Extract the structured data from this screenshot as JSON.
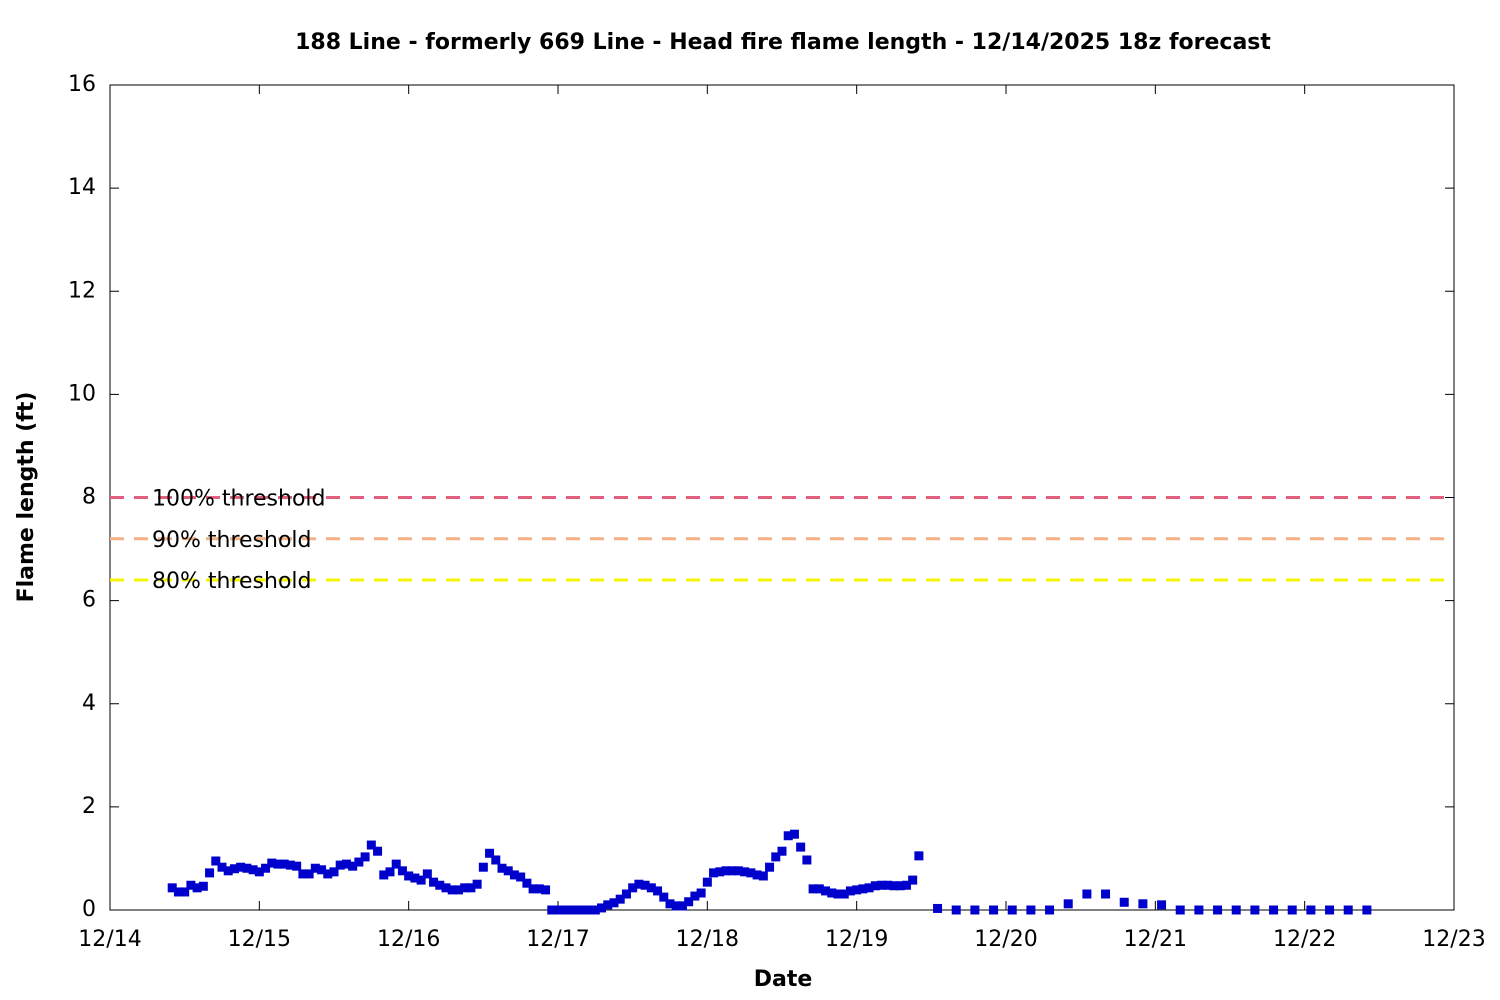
{
  "chart_data": {
    "type": "scatter",
    "title": "188 Line - formerly 669 Line - Head fire flame length - 12/14/2025 18z forecast",
    "xlabel": "Date",
    "ylabel": "Flame length (ft)",
    "xlim": [
      0,
      216
    ],
    "xticks": [
      {
        "value": 0,
        "label": "12/14"
      },
      {
        "value": 24,
        "label": "12/15"
      },
      {
        "value": 48,
        "label": "12/16"
      },
      {
        "value": 72,
        "label": "12/17"
      },
      {
        "value": 96,
        "label": "12/18"
      },
      {
        "value": 120,
        "label": "12/19"
      },
      {
        "value": 144,
        "label": "12/20"
      },
      {
        "value": 168,
        "label": "12/21"
      },
      {
        "value": 192,
        "label": "12/22"
      },
      {
        "value": 216,
        "label": "12/23"
      }
    ],
    "ylim": [
      0,
      16
    ],
    "yticks": [
      0,
      2,
      4,
      6,
      8,
      10,
      12,
      14,
      16
    ],
    "thresholds": [
      {
        "name": "100% threshold",
        "value": 8,
        "color": "#e0607e"
      },
      {
        "name": "90% threshold",
        "value": 7.2,
        "color": "#f4b183"
      },
      {
        "name": "80% threshold",
        "value": 6.4,
        "color": "#f5f500"
      }
    ],
    "series": [
      {
        "color": "#0000cc",
        "x": [
          10,
          11,
          12,
          13,
          14,
          15,
          16,
          17,
          18,
          19,
          20,
          21,
          22,
          23,
          24,
          25,
          26,
          27,
          28,
          29,
          30,
          31,
          32,
          33,
          34,
          35,
          36,
          37,
          38,
          39,
          40,
          41,
          42,
          43,
          44,
          45,
          46,
          47,
          48,
          49,
          50,
          51,
          52,
          53,
          54,
          55,
          56,
          57,
          58,
          59,
          60,
          61,
          62,
          63,
          64,
          65,
          66,
          67,
          68,
          69,
          70,
          71,
          72,
          73,
          74,
          75,
          76,
          77,
          78,
          79,
          80,
          81,
          82,
          83,
          84,
          85,
          86,
          87,
          88,
          89,
          90,
          91,
          92,
          93,
          94,
          95,
          96,
          97,
          98,
          99,
          100,
          101,
          102,
          103,
          104,
          105,
          106,
          107,
          108,
          109,
          110,
          111,
          112,
          113,
          114,
          115,
          116,
          117,
          118,
          119,
          120,
          121,
          122,
          123,
          124,
          125,
          126,
          127,
          128,
          129,
          130,
          133,
          136,
          139,
          142,
          145,
          148,
          151,
          154,
          157,
          160,
          163,
          166,
          169,
          172,
          175,
          178,
          181,
          184,
          187,
          190,
          193,
          196,
          199,
          202
        ],
        "values": [
          0.43,
          0.35,
          0.35,
          0.48,
          0.43,
          0.46,
          0.72,
          0.95,
          0.83,
          0.76,
          0.8,
          0.83,
          0.81,
          0.78,
          0.74,
          0.81,
          0.91,
          0.89,
          0.89,
          0.87,
          0.85,
          0.7,
          0.7,
          0.81,
          0.78,
          0.7,
          0.74,
          0.87,
          0.89,
          0.85,
          0.93,
          1.03,
          1.26,
          1.14,
          0.68,
          0.74,
          0.89,
          0.76,
          0.66,
          0.62,
          0.58,
          0.7,
          0.54,
          0.48,
          0.43,
          0.39,
          0.39,
          0.43,
          0.43,
          0.5,
          0.83,
          1.1,
          0.97,
          0.81,
          0.76,
          0.68,
          0.64,
          0.52,
          0.41,
          0.41,
          0.39,
          0,
          0,
          0,
          0,
          0,
          0,
          0,
          0,
          0.04,
          0.1,
          0.14,
          0.21,
          0.31,
          0.43,
          0.5,
          0.48,
          0.43,
          0.37,
          0.25,
          0.12,
          0.08,
          0.08,
          0.16,
          0.27,
          0.33,
          0.54,
          0.72,
          0.74,
          0.76,
          0.76,
          0.76,
          0.74,
          0.72,
          0.68,
          0.66,
          0.83,
          1.03,
          1.14,
          1.44,
          1.47,
          1.22,
          0.97,
          0.41,
          0.41,
          0.37,
          0.33,
          0.31,
          0.31,
          0.37,
          0.39,
          0.41,
          0.43,
          0.47,
          0.48,
          0.48,
          0.47,
          0.47,
          0.48,
          0.58,
          1.05,
          0.03,
          0,
          0,
          0,
          0,
          0,
          0,
          0.12,
          0.31,
          0.31,
          0.15,
          0.12,
          0.1,
          0,
          0,
          0,
          0,
          0,
          0,
          0,
          0,
          0,
          0,
          0
        ]
      }
    ]
  }
}
